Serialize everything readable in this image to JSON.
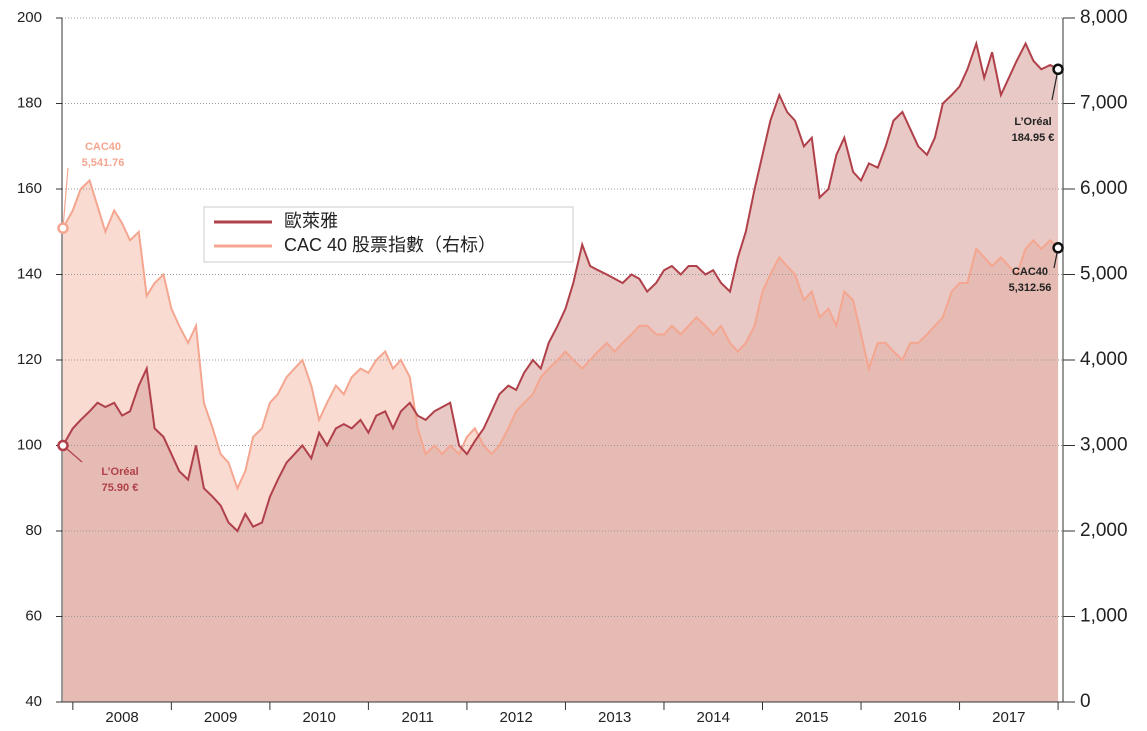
{
  "chart_data": {
    "type": "line",
    "x": [
      2007.9,
      2008.0,
      2008.08,
      2008.17,
      2008.25,
      2008.33,
      2008.42,
      2008.5,
      2008.58,
      2008.67,
      2008.75,
      2008.83,
      2008.92,
      2009.0,
      2009.08,
      2009.17,
      2009.25,
      2009.33,
      2009.42,
      2009.5,
      2009.58,
      2009.67,
      2009.75,
      2009.83,
      2009.92,
      2010.0,
      2010.08,
      2010.17,
      2010.25,
      2010.33,
      2010.42,
      2010.5,
      2010.58,
      2010.67,
      2010.75,
      2010.83,
      2010.92,
      2011.0,
      2011.08,
      2011.17,
      2011.25,
      2011.33,
      2011.42,
      2011.5,
      2011.58,
      2011.67,
      2011.75,
      2011.83,
      2011.92,
      2012.0,
      2012.08,
      2012.17,
      2012.25,
      2012.33,
      2012.42,
      2012.5,
      2012.58,
      2012.67,
      2012.75,
      2012.83,
      2012.92,
      2013.0,
      2013.08,
      2013.17,
      2013.25,
      2013.33,
      2013.42,
      2013.5,
      2013.58,
      2013.67,
      2013.75,
      2013.83,
      2013.92,
      2014.0,
      2014.08,
      2014.17,
      2014.25,
      2014.33,
      2014.42,
      2014.5,
      2014.58,
      2014.67,
      2014.75,
      2014.83,
      2014.92,
      2015.0,
      2015.08,
      2015.17,
      2015.25,
      2015.33,
      2015.42,
      2015.5,
      2015.58,
      2015.67,
      2015.75,
      2015.83,
      2015.92,
      2016.0,
      2016.08,
      2016.17,
      2016.25,
      2016.33,
      2016.42,
      2016.5,
      2016.58,
      2016.67,
      2016.75,
      2016.83,
      2016.92,
      2017.0,
      2017.08,
      2017.17,
      2017.25,
      2017.33,
      2017.42,
      2017.5,
      2017.58,
      2017.67,
      2017.75,
      2017.83,
      2017.92,
      2018.0
    ],
    "series": [
      {
        "name": "歐萊雅",
        "color": "#b0404a",
        "fill": "#d9a59f",
        "values": [
          100,
          104,
          106,
          108,
          110,
          109,
          110,
          107,
          108,
          114,
          118,
          104,
          102,
          98,
          94,
          92,
          100,
          90,
          88,
          86,
          82,
          80,
          84,
          81,
          82,
          88,
          92,
          96,
          98,
          100,
          97,
          103,
          100,
          104,
          105,
          104,
          106,
          103,
          107,
          108,
          104,
          108,
          110,
          107,
          106,
          108,
          109,
          110,
          100,
          98,
          101,
          104,
          108,
          112,
          114,
          113,
          117,
          120,
          118,
          124,
          128,
          132,
          138,
          147,
          142,
          141,
          140,
          139,
          138,
          140,
          139,
          136,
          138,
          141,
          142,
          140,
          142,
          142,
          140,
          141,
          138,
          136,
          144,
          150,
          160,
          168,
          176,
          182,
          178,
          176,
          170,
          172,
          158,
          160,
          168,
          172,
          164,
          162,
          166,
          165,
          170,
          176,
          178,
          174,
          170,
          168,
          172,
          180,
          182,
          184,
          188,
          194,
          186,
          192,
          182,
          186,
          190,
          194,
          190,
          188,
          189,
          188
        ]
      },
      {
        "name": "CAC 40 股票指數（右标）",
        "color": "#f4a690",
        "fill": "#f7cfc2",
        "axis": "y2",
        "values": [
          5541.76,
          5750,
          6000,
          6100,
          5800,
          5500,
          5750,
          5600,
          5400,
          5500,
          4750,
          4900,
          5000,
          4600,
          4400,
          4200,
          4400,
          3500,
          3200,
          2900,
          2800,
          2500,
          2700,
          3100,
          3200,
          3500,
          3600,
          3800,
          3900,
          4000,
          3700,
          3300,
          3500,
          3700,
          3600,
          3800,
          3900,
          3850,
          4000,
          4100,
          3900,
          4000,
          3800,
          3200,
          2900,
          3000,
          2900,
          3000,
          2900,
          3100,
          3200,
          3000,
          2900,
          3000,
          3200,
          3400,
          3500,
          3600,
          3800,
          3900,
          4000,
          4100,
          4000,
          3900,
          4000,
          4100,
          4200,
          4100,
          4200,
          4300,
          4400,
          4400,
          4300,
          4300,
          4400,
          4300,
          4400,
          4500,
          4400,
          4300,
          4400,
          4200,
          4100,
          4200,
          4400,
          4800,
          5000,
          5200,
          5100,
          5000,
          4700,
          4800,
          4500,
          4600,
          4400,
          4800,
          4700,
          4300,
          3900,
          4200,
          4200,
          4100,
          4000,
          4200,
          4200,
          4300,
          4400,
          4500,
          4800,
          4900,
          4900,
          5300,
          5200,
          5100,
          5200,
          5100,
          5000,
          5300,
          5400,
          5300,
          5400,
          5312.56
        ]
      }
    ],
    "xlim": [
      2007.89,
      2018.05
    ],
    "xticks": [
      {
        "value": 2008.5,
        "label": "2008"
      },
      {
        "value": 2009.5,
        "label": "2009"
      },
      {
        "value": 2010.5,
        "label": "2010"
      },
      {
        "value": 2011.5,
        "label": "2011"
      },
      {
        "value": 2012.5,
        "label": "2012"
      },
      {
        "value": 2013.5,
        "label": "2013"
      },
      {
        "value": 2014.5,
        "label": "2014"
      },
      {
        "value": 2015.5,
        "label": "2015"
      },
      {
        "value": 2016.5,
        "label": "2016"
      },
      {
        "value": 2017.5,
        "label": "2017"
      }
    ],
    "ylim": [
      40,
      200
    ],
    "yticks": [
      40,
      60,
      80,
      100,
      120,
      140,
      160,
      180,
      200
    ],
    "y2lim": [
      0,
      8000
    ],
    "y2ticks": [
      0,
      {
        "value": 1000,
        "label": "1,000"
      },
      {
        "value": 2000,
        "label": "2,000"
      },
      {
        "value": 3000,
        "label": "3,000"
      },
      {
        "value": 4000,
        "label": "4,000"
      },
      {
        "value": 5000,
        "label": "5,000"
      },
      {
        "value": 6000,
        "label": "6,000"
      },
      {
        "value": 7000,
        "label": "7,000"
      },
      {
        "value": 8000,
        "label": "8,000"
      }
    ],
    "grid": true,
    "annotations": [
      {
        "lines": [
          "CAC40",
          "5,541.76"
        ],
        "color": "#f4a690"
      },
      {
        "lines": [
          "L’Oréal",
          "75.90 €"
        ],
        "color": "#b0404a"
      },
      {
        "lines": [
          "L’Oréal",
          "184.95 €"
        ],
        "color": "#222222"
      },
      {
        "lines": [
          "CAC40",
          "5,312.56"
        ],
        "color": "#222222"
      }
    ]
  }
}
